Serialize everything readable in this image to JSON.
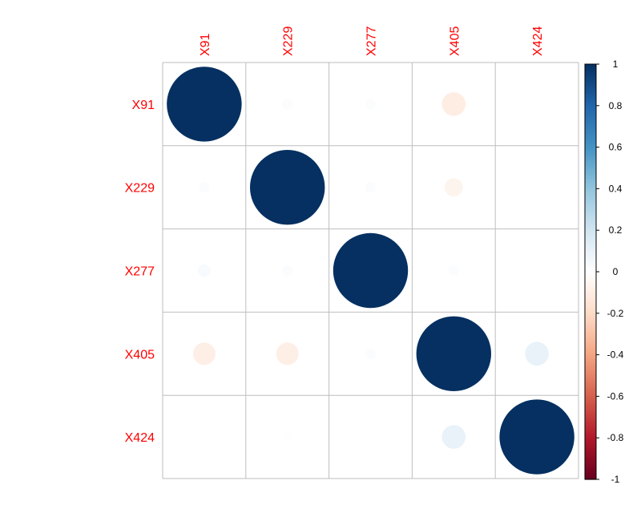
{
  "chart_data": {
    "type": "heatmap",
    "style": "corrplot-circle",
    "variables": [
      "X91",
      "X229",
      "X277",
      "X405",
      "X424"
    ],
    "matrix": [
      [
        1.0,
        0.02,
        0.02,
        -0.1,
        0.0
      ],
      [
        0.02,
        1.0,
        0.02,
        -0.06,
        0.0
      ],
      [
        0.03,
        0.02,
        1.0,
        0.02,
        0.0
      ],
      [
        -0.09,
        -0.09,
        0.02,
        1.0,
        0.1
      ],
      [
        0.0,
        0.01,
        0.0,
        0.1,
        1.0
      ]
    ],
    "colorbar": {
      "range": [
        -1,
        1
      ],
      "ticks": [
        "1",
        "0.8",
        "0.6",
        "0.4",
        "0.2",
        "0",
        "-0.2",
        "-0.4",
        "-0.6",
        "-0.8",
        "-1"
      ]
    },
    "label_color": "#ff0000",
    "grid_color": "#bebebe",
    "palette": [
      "#67001f",
      "#b2182b",
      "#d6604d",
      "#f4a582",
      "#fddbc7",
      "#ffffff",
      "#d1e5f0",
      "#92c5de",
      "#4393c3",
      "#2166ac",
      "#053061"
    ]
  }
}
